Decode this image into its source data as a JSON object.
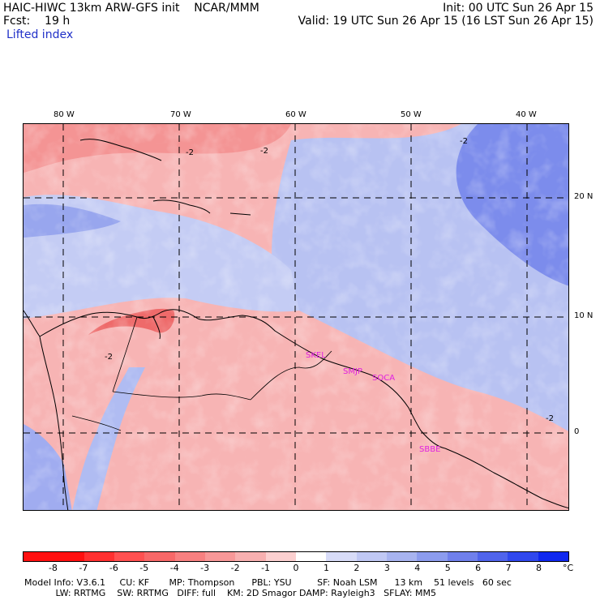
{
  "header": {
    "line1_left": "HAIC-HIWC 13km ARW-GFS init    NCAR/MMM",
    "line1_right": "Init: 00 UTC Sun 26 Apr 15",
    "line2_left": "Fcst:    19 h",
    "line2_right": "Valid: 19 UTC Sun 26 Apr 15 (16 LST Sun 26 Apr 15)",
    "field_name": "Lifted index"
  },
  "map": {
    "lon_labels": [
      "80 W",
      "70 W",
      "60 W",
      "50 W",
      "40 W"
    ],
    "lat_labels": [
      "20 N",
      "10 N",
      "0"
    ],
    "contour_labels": [
      "-2",
      "-2",
      "-2",
      "-2",
      "-2"
    ],
    "station_labels": [
      "SKEL",
      "SMJP",
      "SOCA",
      "SBBE"
    ],
    "station_color": "#e020e0",
    "warm_color": "#f4a0a0",
    "cool_color": "#a8b4f0"
  },
  "colorbar": {
    "ticks": [
      "-8",
      "-7",
      "-6",
      "-5",
      "-4",
      "-3",
      "-2",
      "-1",
      "0",
      "1",
      "2",
      "3",
      "4",
      "5",
      "6",
      "7",
      "8"
    ],
    "unit": "°C",
    "colors": [
      "#ff1010",
      "#ff3030",
      "#ff5050",
      "#f86868",
      "#f88080",
      "#f89898",
      "#f8b0b0",
      "#fcd0d0",
      "#ffffff",
      "#d8dcf8",
      "#c0c8f4",
      "#a8b4f0",
      "#8c9cee",
      "#7080ec",
      "#5064ec",
      "#3048ee",
      "#1028f0"
    ]
  },
  "footer": {
    "line1": "Model Info: V3.6.1     CU: KF       MP: Thompson      PBL: YSU         SF: Noah LSM      13 km    51 levels   60 sec",
    "line2": "           LW: RRTMG    SW: RRTMG   DIFF: full    KM: 2D Smagor DAMP: Rayleigh3   SFLAY: MM5"
  }
}
